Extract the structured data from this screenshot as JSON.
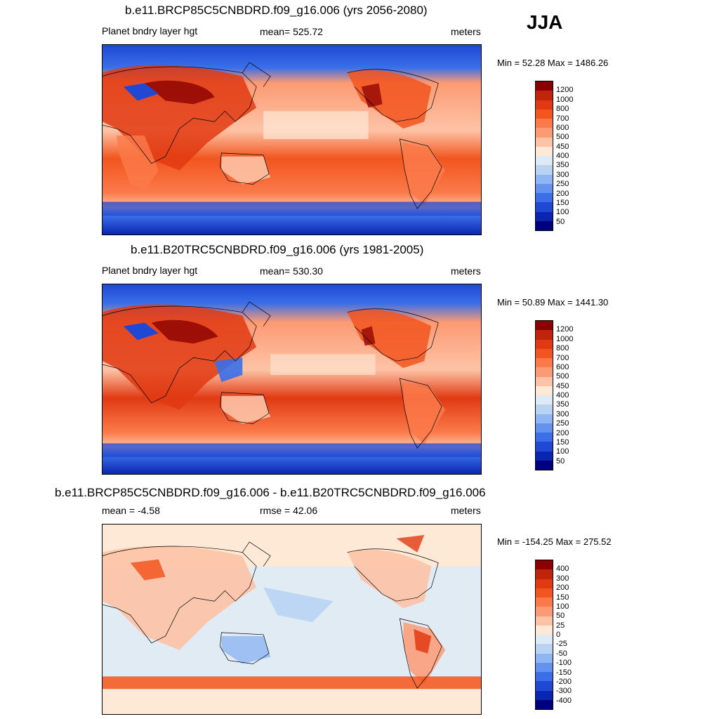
{
  "season": "JJA",
  "panels": [
    {
      "title": "b.e11.BRCP85C5CNBDRD.f09_g16.006 (yrs 2056-2080)",
      "left_label": "Planet bndry layer hgt",
      "center_label": "mean= 525.72",
      "units": "meters",
      "minmax": "Min =  52.28 Max = 1486.26",
      "colorbar": {
        "labels": [
          "1200",
          "1000",
          "800",
          "700",
          "600",
          "500",
          "450",
          "400",
          "350",
          "300",
          "250",
          "200",
          "150",
          "100",
          "50"
        ],
        "colors": [
          "#8b0000",
          "#c0250b",
          "#e03a12",
          "#f2551e",
          "#fb7a4a",
          "#fc9a73",
          "#fdc3a6",
          "#fee8d6",
          "#deebf7",
          "#b9d4f3",
          "#8fb5f2",
          "#6393ef",
          "#3a6fe8",
          "#1f48d4",
          "#0a25b0",
          "#00007f"
        ]
      }
    },
    {
      "title": "b.e11.B20TRC5CNBDRD.f09_g16.006 (yrs 1981-2005)",
      "left_label": "Planet bndry layer hgt",
      "center_label": "mean= 530.30",
      "units": "meters",
      "minmax": "Min =  50.89 Max = 1441.30",
      "colorbar": {
        "labels": [
          "1200",
          "1000",
          "800",
          "700",
          "600",
          "500",
          "450",
          "400",
          "350",
          "300",
          "250",
          "200",
          "150",
          "100",
          "50"
        ],
        "colors": [
          "#8b0000",
          "#c0250b",
          "#e03a12",
          "#f2551e",
          "#fb7a4a",
          "#fc9a73",
          "#fdc3a6",
          "#fee8d6",
          "#deebf7",
          "#b9d4f3",
          "#8fb5f2",
          "#6393ef",
          "#3a6fe8",
          "#1f48d4",
          "#0a25b0",
          "#00007f"
        ]
      }
    },
    {
      "title": "b.e11.BRCP85C5CNBDRD.f09_g16.006 - b.e11.B20TRC5CNBDRD.f09_g16.006",
      "left_label": "mean =  -4.58",
      "center_label": "rmse =  42.06",
      "units": "meters",
      "minmax": "Min = -154.25 Max = 275.52",
      "colorbar": {
        "labels": [
          "400",
          "300",
          "200",
          "150",
          "100",
          "50",
          "25",
          "0",
          "-25",
          "-50",
          "-100",
          "-150",
          "-200",
          "-300",
          "-400"
        ],
        "colors": [
          "#8b0000",
          "#c0250b",
          "#e03a12",
          "#f2551e",
          "#fb7a4a",
          "#fc9a73",
          "#fdc3a6",
          "#fee8d6",
          "#deebf7",
          "#b9d4f3",
          "#8fb5f2",
          "#6393ef",
          "#3a6fe8",
          "#1f48d4",
          "#0a25b0",
          "#00007f"
        ]
      }
    }
  ]
}
